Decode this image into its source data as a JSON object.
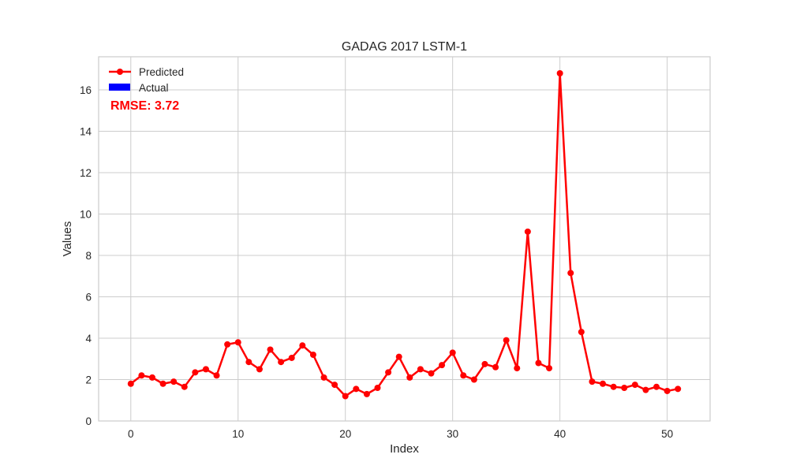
{
  "chart_data": {
    "type": "line",
    "title": "GADAG 2017 LSTM-1",
    "xlabel": "Index",
    "ylabel": "Values",
    "xlim": [
      -3,
      54
    ],
    "ylim": [
      0,
      17.6
    ],
    "xticks": [
      0,
      10,
      20,
      30,
      40,
      50
    ],
    "yticks": [
      0,
      2,
      4,
      6,
      8,
      10,
      12,
      14,
      16
    ],
    "grid": true,
    "legend_position": "top-left",
    "series": [
      {
        "name": "Predicted",
        "color": "#ff0000",
        "marker": "circle",
        "x": [
          0,
          1,
          2,
          3,
          4,
          5,
          6,
          7,
          8,
          9,
          10,
          11,
          12,
          13,
          14,
          15,
          16,
          17,
          18,
          19,
          20,
          21,
          22,
          23,
          24,
          25,
          26,
          27,
          28,
          29,
          30,
          31,
          32,
          33,
          34,
          35,
          36,
          37,
          38,
          39,
          40,
          41,
          42,
          43,
          44,
          45,
          46,
          47,
          48,
          49,
          50,
          51
        ],
        "values": [
          1.8,
          2.2,
          2.1,
          1.8,
          1.9,
          1.65,
          2.35,
          2.5,
          2.2,
          3.7,
          3.8,
          2.85,
          2.5,
          3.45,
          2.85,
          3.05,
          3.65,
          3.2,
          2.1,
          1.75,
          1.2,
          1.55,
          1.3,
          1.6,
          2.35,
          3.1,
          2.1,
          2.5,
          2.3,
          2.7,
          3.3,
          2.2,
          2.0,
          2.75,
          2.6,
          3.9,
          2.55,
          9.15,
          2.8,
          2.55,
          16.8,
          7.15,
          4.3,
          1.9,
          1.8,
          1.65,
          1.6,
          1.75,
          1.5,
          1.65,
          1.45,
          1.55
        ]
      },
      {
        "name": "Actual",
        "color": "#0000ff",
        "x": [],
        "values": []
      }
    ],
    "annotation": {
      "text": "RMSE: 3.72",
      "color": "#ff0000"
    }
  }
}
